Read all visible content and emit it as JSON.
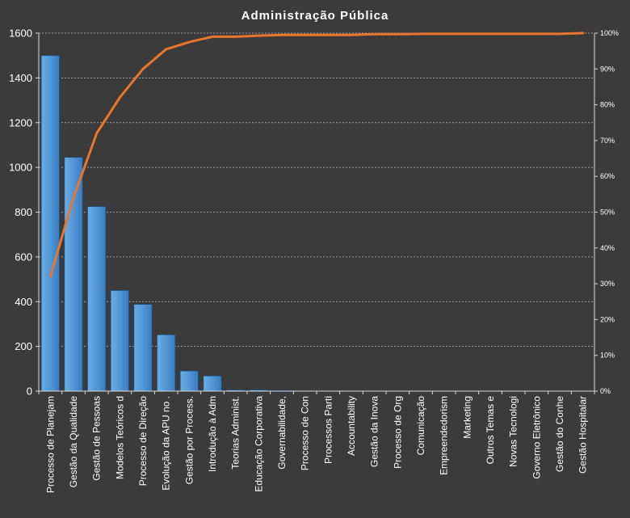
{
  "chart_data": {
    "type": "bar",
    "title": "Administração  Pública",
    "categories": [
      "Processo de Planejam",
      "Gestão da Qualidade",
      "Gestão de Pessoas",
      "Modelos Teóricos d",
      "Processo de Direção",
      "Evolução da APU no .",
      "Gestão por Process.",
      "Introdução à Adm",
      "Teorias Administ.",
      "Educação Corporativa",
      "Governabilidade,",
      "Processo de Con",
      "Processos Parti",
      "Accountability",
      "Gestão da Inova",
      "Processo de Org",
      "Comunicação",
      "Empreendedorism",
      "Marketing",
      "Outros Temas e",
      "Novas Tecnologi",
      "Governo Eletrônico",
      "Gestão do Conhe",
      "Gestão Hospitalar"
    ],
    "series": [
      {
        "type": "bar",
        "color": "#4f94d4",
        "values": [
          1500,
          1045,
          825,
          450,
          388,
          252,
          90,
          68,
          5,
          5,
          2,
          1,
          1,
          1,
          1,
          1,
          1,
          1,
          1,
          1,
          1,
          0,
          0,
          0
        ]
      },
      {
        "type": "line",
        "axis": "right",
        "color": "#e8762c",
        "values": [
          0.32,
          0.54,
          0.72,
          0.82,
          0.9,
          0.955,
          0.975,
          0.99,
          0.99,
          0.993,
          0.995,
          0.995,
          0.995,
          0.995,
          0.997,
          0.997,
          0.998,
          0.998,
          0.998,
          0.998,
          0.998,
          0.998,
          0.998,
          1.0
        ]
      }
    ],
    "ylim": [
      0,
      1600
    ],
    "yticks": [
      0,
      200,
      400,
      600,
      800,
      1000,
      1200,
      1400,
      1600
    ],
    "y2lim": [
      0,
      1
    ],
    "y2ticks": [
      "0%",
      "10%",
      "20%",
      "30%",
      "40%",
      "50%",
      "60%",
      "70%",
      "80%",
      "90%",
      "100%"
    ],
    "grid": true,
    "legend": "none"
  }
}
